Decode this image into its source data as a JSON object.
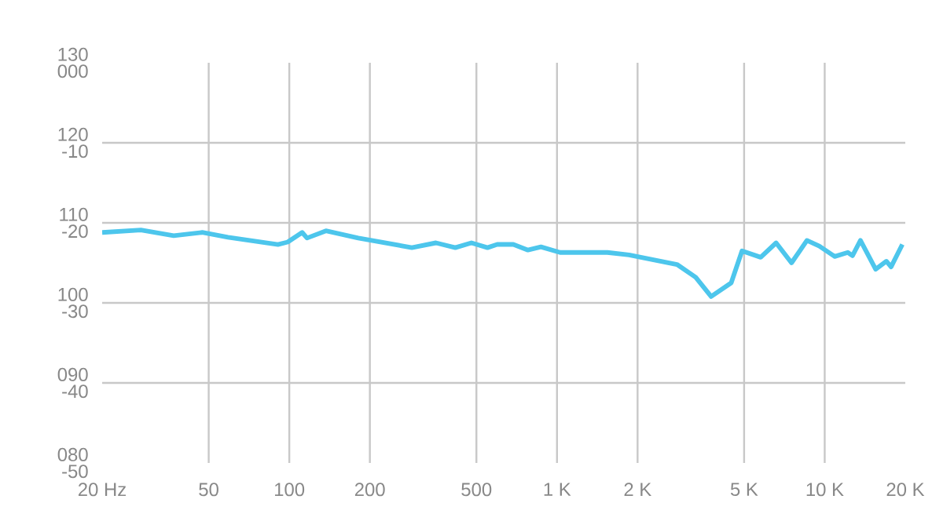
{
  "chart_data": {
    "type": "line",
    "log": "x",
    "grid": true,
    "line_style": "solid",
    "x": [
      20,
      27.9,
      37,
      47.3,
      59,
      90.7,
      98.6,
      111.7,
      116.5,
      137,
      181,
      287,
      353,
      417,
      479,
      550,
      598,
      687,
      779,
      871,
      1027,
      1543,
      1858,
      2807,
      3297,
      3766,
      4474,
      4911,
      5766,
      6584,
      7518,
      8584,
      9545,
      10900,
      12200,
      12700,
      13600,
      15500,
      17000,
      17700,
      19500
    ],
    "series": [
      {
        "color": "#4dc6ec",
        "values": [
          108.8,
          109.1,
          108.4,
          108.8,
          108.2,
          107.3,
          107.6,
          108.8,
          108.1,
          109.0,
          108.1,
          106.9,
          107.5,
          106.9,
          107.5,
          106.9,
          107.3,
          107.3,
          106.6,
          107.0,
          106.3,
          106.3,
          106.0,
          104.8,
          103.2,
          100.8,
          102.5,
          106.5,
          105.7,
          107.5,
          105.0,
          107.8,
          107.1,
          105.8,
          106.3,
          105.9,
          107.8,
          104.2,
          105.2,
          104.5,
          107.3
        ]
      }
    ],
    "xlim": [
      20,
      20000
    ],
    "xticks": [
      {
        "value": 20,
        "label": "20 Hz"
      },
      50,
      100,
      200,
      500,
      {
        "value": 1000,
        "label": "1 K"
      },
      {
        "value": 2000,
        "label": "2 K"
      },
      {
        "value": 5000,
        "label": "5 K"
      },
      {
        "value": 10000,
        "label": "10 K"
      },
      {
        "value": 20000,
        "label": "20 K"
      }
    ],
    "ylim": [
      80,
      130
    ],
    "yticks": [
      {
        "value": 80,
        "label": "080"
      },
      {
        "value": 90,
        "label": "090"
      },
      100,
      110,
      120,
      130
    ],
    "y2lim": [
      -50,
      0
    ],
    "y2ticks": [
      -50,
      -40,
      -30,
      -20,
      -10,
      {
        "value": 0,
        "label": "000"
      }
    ]
  }
}
